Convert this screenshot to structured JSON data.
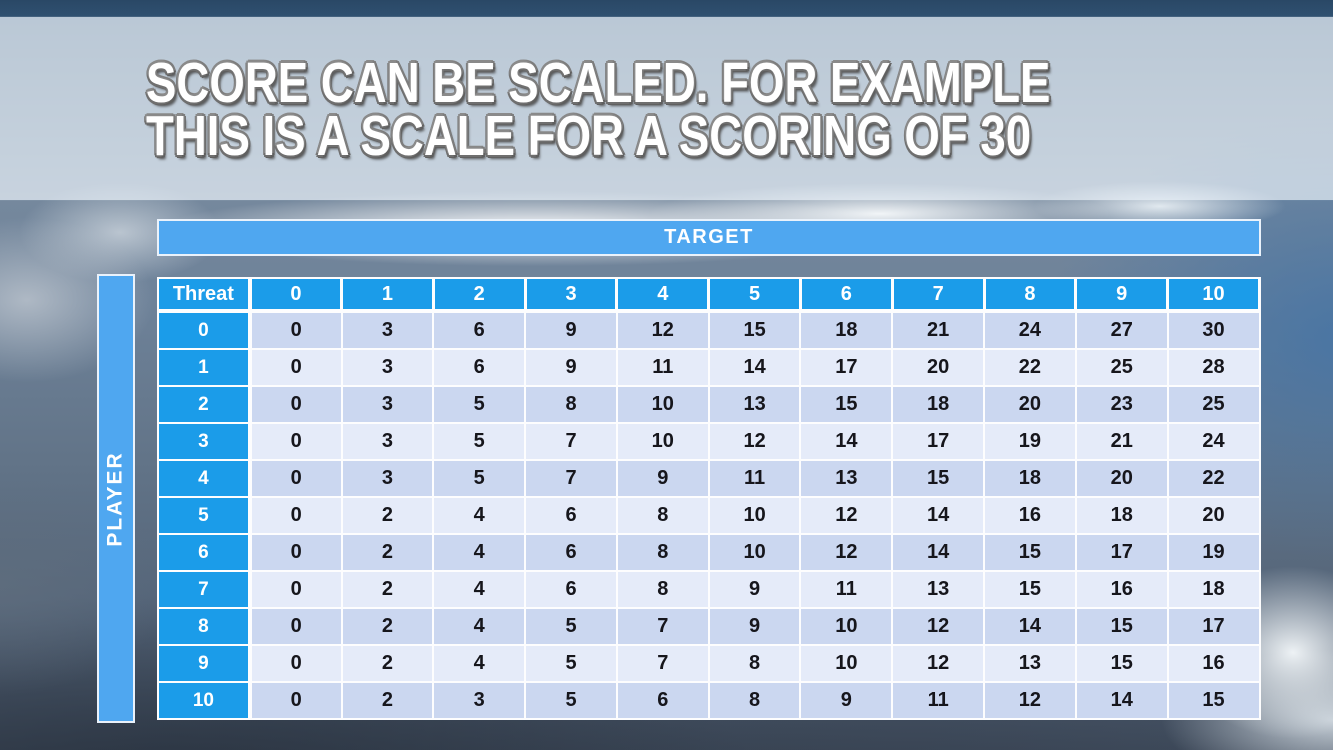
{
  "slide": {
    "title_lines": [
      "SCORE CAN BE SCALED. FOR EXAMPLE",
      "THIS IS A SCALE FOR A SCORING OF 30"
    ]
  },
  "chart_data": {
    "type": "table",
    "column_axis_label": "TARGET",
    "row_axis_label": "PLAYER",
    "corner_label": "Threat",
    "column_headers": [
      "0",
      "1",
      "2",
      "3",
      "4",
      "5",
      "6",
      "7",
      "8",
      "9",
      "10"
    ],
    "row_headers": [
      "0",
      "1",
      "2",
      "3",
      "4",
      "5",
      "6",
      "7",
      "8",
      "9",
      "10"
    ],
    "rows": [
      [
        0,
        3,
        6,
        9,
        12,
        15,
        18,
        21,
        24,
        27,
        30
      ],
      [
        0,
        3,
        6,
        9,
        11,
        14,
        17,
        20,
        22,
        25,
        28
      ],
      [
        0,
        3,
        5,
        8,
        10,
        13,
        15,
        18,
        20,
        23,
        25
      ],
      [
        0,
        3,
        5,
        7,
        10,
        12,
        14,
        17,
        19,
        21,
        24
      ],
      [
        0,
        3,
        5,
        7,
        9,
        11,
        13,
        15,
        18,
        20,
        22
      ],
      [
        0,
        2,
        4,
        6,
        8,
        10,
        12,
        14,
        16,
        18,
        20
      ],
      [
        0,
        2,
        4,
        6,
        8,
        10,
        12,
        14,
        15,
        17,
        19
      ],
      [
        0,
        2,
        4,
        6,
        8,
        9,
        11,
        13,
        15,
        16,
        18
      ],
      [
        0,
        2,
        4,
        5,
        7,
        9,
        10,
        12,
        14,
        15,
        17
      ],
      [
        0,
        2,
        4,
        5,
        7,
        8,
        10,
        12,
        13,
        15,
        16
      ],
      [
        0,
        2,
        3,
        5,
        6,
        8,
        9,
        11,
        12,
        14,
        15
      ]
    ]
  },
  "colors": {
    "header_blue": "#1B9CE9",
    "bar_blue": "#4FA7F0",
    "row_even": "#CBD7F0",
    "row_odd": "#E5EBF9",
    "cell_text": "#16161C",
    "title_text": "#FFFFFF"
  }
}
